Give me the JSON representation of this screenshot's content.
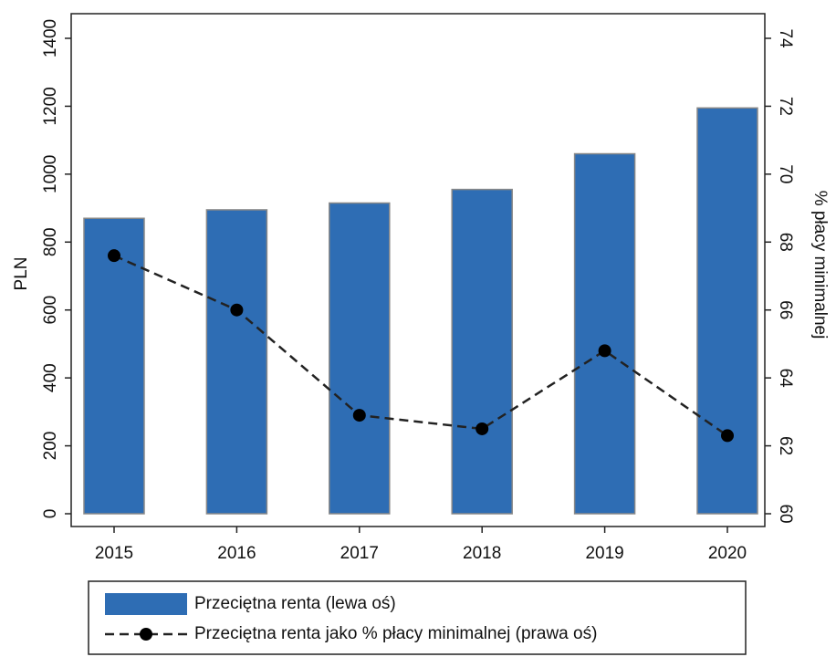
{
  "chart_data": {
    "type": "bar",
    "categories": [
      "2015",
      "2016",
      "2017",
      "2018",
      "2019",
      "2020"
    ],
    "series": [
      {
        "name": "Przeciętna renta (lewa oś)",
        "type": "bar",
        "color": "#2e6db4",
        "values": [
          870,
          895,
          915,
          955,
          1060,
          1195
        ]
      },
      {
        "name": "Przeciętna renta jako % płacy minimalnej (prawa oś)",
        "type": "line",
        "axis": "y2",
        "color": "#222222",
        "values": [
          67.6,
          66.0,
          62.9,
          62.5,
          64.8,
          62.3
        ]
      }
    ],
    "ylabel": "PLN",
    "y2label": "% płacy minimalnej",
    "ylim": [
      0,
      1400
    ],
    "yticks": [
      0,
      200,
      400,
      600,
      800,
      1000,
      1200,
      1400
    ],
    "y2lim": [
      60,
      74
    ],
    "y2ticks": [
      60,
      62,
      64,
      66,
      68,
      70,
      72,
      74
    ],
    "legend": "bottom"
  }
}
